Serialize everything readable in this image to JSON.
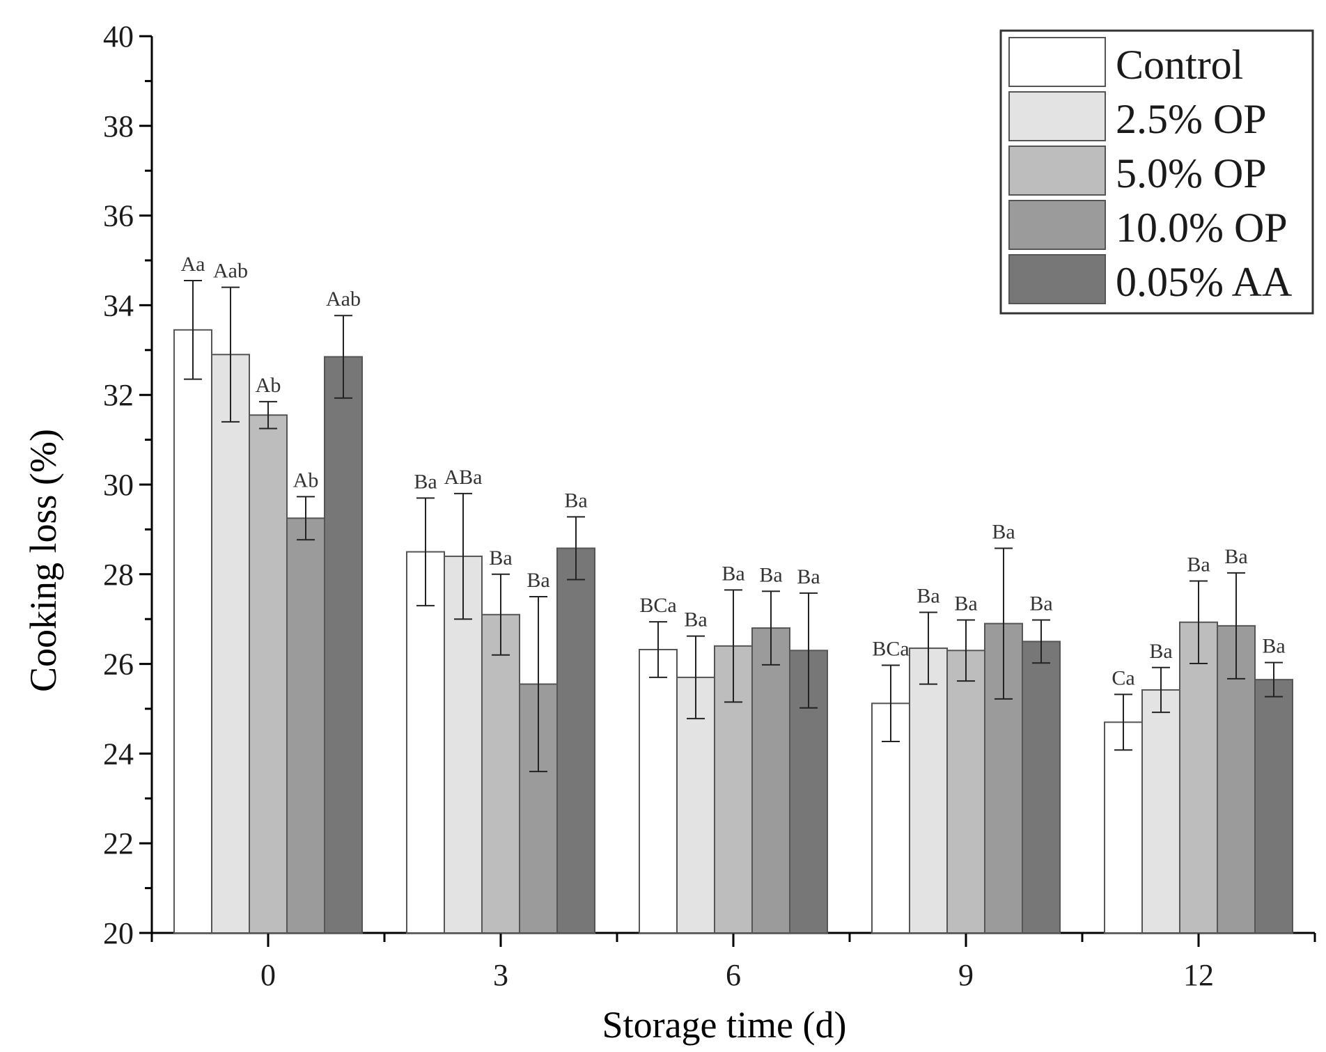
{
  "chart_data": {
    "type": "bar",
    "xlabel": "Storage time (d)",
    "ylabel": "Cooking loss (%)",
    "ylim": [
      20,
      40
    ],
    "yticks": [
      20,
      22,
      24,
      26,
      28,
      30,
      32,
      34,
      36,
      38,
      40
    ],
    "categories": [
      "0",
      "3",
      "6",
      "9",
      "12"
    ],
    "legend_position": "top-right",
    "grid": false,
    "series": [
      {
        "name": "Control",
        "color": "#ffffff",
        "values": [
          33.45,
          28.5,
          26.32,
          25.12,
          24.7
        ],
        "errors": [
          1.1,
          1.2,
          0.62,
          0.85,
          0.62
        ],
        "labels": [
          "Aa",
          "Ba",
          "BCa",
          "BCa",
          "Ca"
        ]
      },
      {
        "name": "2.5%  OP",
        "color": "#e3e3e3",
        "values": [
          32.9,
          28.4,
          25.7,
          26.35,
          25.42
        ],
        "errors": [
          1.5,
          1.4,
          0.92,
          0.8,
          0.5
        ],
        "labels": [
          "Aab",
          "ABa",
          "Ba",
          "Ba",
          "Ba"
        ]
      },
      {
        "name": "5.0%  OP",
        "color": "#bdbdbd",
        "values": [
          31.55,
          27.1,
          26.4,
          26.3,
          26.93
        ],
        "errors": [
          0.3,
          0.9,
          1.25,
          0.68,
          0.92
        ],
        "labels": [
          "Ab",
          "Ba",
          "Ba",
          "Ba",
          "Ba"
        ]
      },
      {
        "name": "10.0% OP",
        "color": "#9b9b9b",
        "values": [
          29.25,
          25.55,
          26.8,
          26.9,
          26.85
        ],
        "errors": [
          0.48,
          1.95,
          0.82,
          1.68,
          1.18
        ],
        "labels": [
          "Ab",
          "Ba",
          "Ba",
          "Ba",
          "Ba"
        ]
      },
      {
        "name": "0.05% AA",
        "color": "#777777",
        "values": [
          32.85,
          28.58,
          26.3,
          26.5,
          25.65
        ],
        "errors": [
          0.92,
          0.7,
          1.28,
          0.48,
          0.38
        ],
        "labels": [
          "Aab",
          "Ba",
          "Ba",
          "Ba",
          "Ba"
        ]
      }
    ]
  }
}
